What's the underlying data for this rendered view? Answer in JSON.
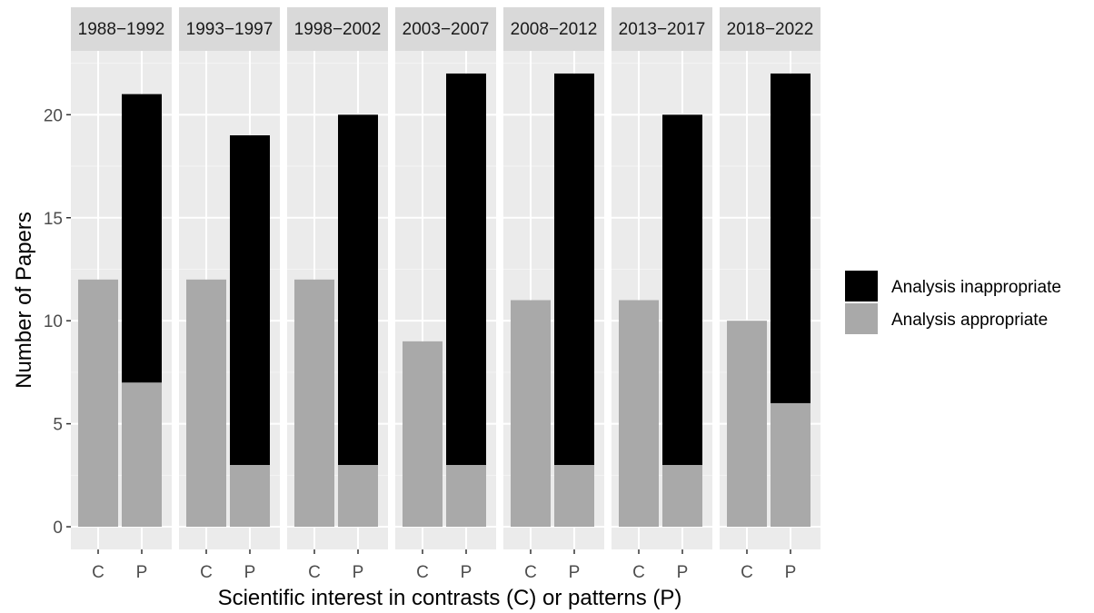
{
  "chart_data": {
    "type": "bar",
    "stacked": true,
    "faceted": true,
    "panels": [
      "1988−1992",
      "1993−1997",
      "1998−2002",
      "2003−2007",
      "2008−2012",
      "2013−2017",
      "2018−2022"
    ],
    "categories": [
      "C",
      "P"
    ],
    "series": [
      {
        "name": "Analysis appropriate",
        "color": "#a9a9a9",
        "values": [
          [
            12,
            7
          ],
          [
            12,
            3
          ],
          [
            12,
            3
          ],
          [
            9,
            3
          ],
          [
            11,
            3
          ],
          [
            11,
            3
          ],
          [
            10,
            6
          ]
        ]
      },
      {
        "name": "Analysis inappropriate",
        "color": "#000000",
        "values": [
          [
            0,
            14
          ],
          [
            0,
            16
          ],
          [
            0,
            17
          ],
          [
            0,
            19
          ],
          [
            0,
            19
          ],
          [
            0,
            17
          ],
          [
            0,
            16
          ]
        ]
      }
    ],
    "xlabel": "Scientific interest in contrasts (C) or patterns (P)",
    "ylabel": "Number of Papers",
    "yticks": [
      0,
      5,
      10,
      15,
      20
    ],
    "ylim": [
      -1.1,
      23.1
    ],
    "grid": true,
    "legend_position": "right",
    "legend_order": [
      "Analysis inappropriate",
      "Analysis appropriate"
    ],
    "panel_background": "#ebebeb",
    "strip_background": "#d9d9d9"
  }
}
